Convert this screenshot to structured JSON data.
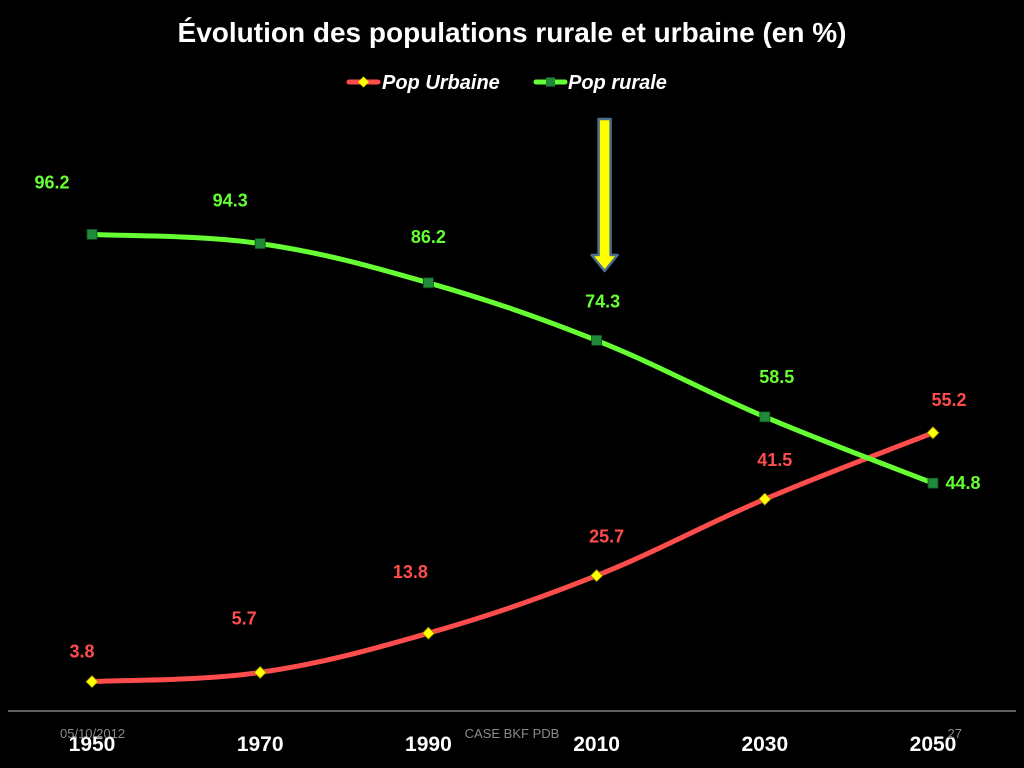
{
  "slide": {
    "date": "05/10/2012",
    "source": "CASE BKF PDB",
    "page_number": "27"
  },
  "chart_data": {
    "type": "line",
    "title": "Évolution des populations rurale et urbaine (en %)",
    "categories": [
      "1950",
      "1970",
      "1990",
      "2010",
      "2030",
      "2050"
    ],
    "series": [
      {
        "name": "Pop Urbaine",
        "values": [
          3.8,
          5.7,
          13.8,
          25.7,
          41.5,
          55.2
        ],
        "line_color": "#ff4d4d",
        "marker": "diamond",
        "marker_color": "#ffff00",
        "label_color": "#ff4d4d"
      },
      {
        "name": "Pop rurale",
        "values": [
          96.2,
          94.3,
          86.2,
          74.3,
          58.5,
          44.8
        ],
        "line_color": "#66ff33",
        "marker": "square",
        "marker_color": "#1f8a3a",
        "label_color": "#66ff33"
      }
    ],
    "ylim": [
      0,
      100
    ],
    "grid": false,
    "legend_position": "top",
    "axis_color": "#7f7f7f",
    "annotation": {
      "type": "arrow",
      "points_to": "2010",
      "fill_color": "#ffff00",
      "stroke_color": "#4a6f8f"
    }
  }
}
